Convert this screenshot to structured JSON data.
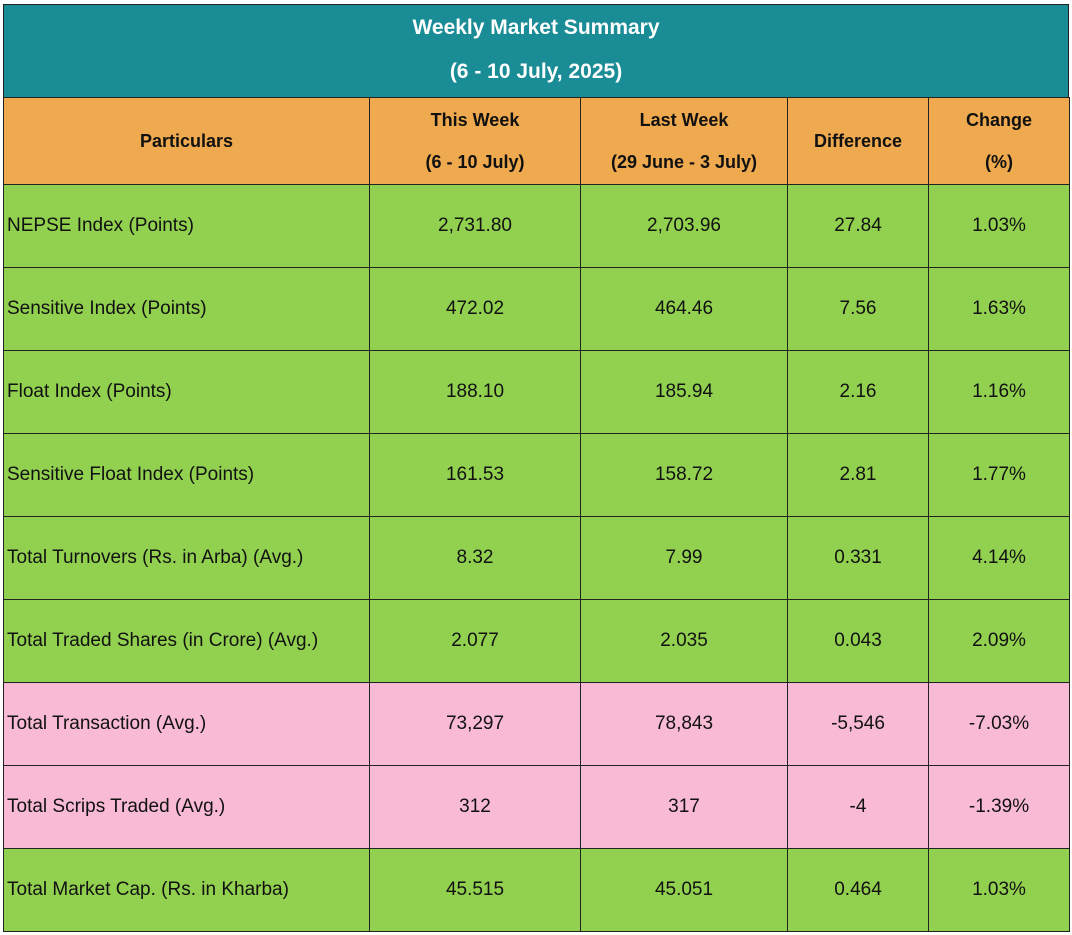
{
  "title": {
    "line1": "Weekly Market Summary",
    "line2": "(6 - 10 July, 2025)"
  },
  "headers": {
    "particulars": "Particulars",
    "this_week": "This Week",
    "this_week_range": "(6 - 10 July)",
    "last_week": "Last Week",
    "last_week_range": "(29 June - 3 July)",
    "difference": "Difference",
    "change": "Change",
    "change_unit": "(%)"
  },
  "rows": [
    {
      "particular": "NEPSE Index (Points)",
      "this_week": "2,731.80",
      "last_week": "2,703.96",
      "difference": "27.84",
      "change": "1.03%",
      "color": "#92d050"
    },
    {
      "particular": "Sensitive Index (Points)",
      "this_week": "472.02",
      "last_week": "464.46",
      "difference": "7.56",
      "change": "1.63%",
      "color": "#92d050"
    },
    {
      "particular": "Float Index (Points)",
      "this_week": "188.10",
      "last_week": "185.94",
      "difference": "2.16",
      "change": "1.16%",
      "color": "#92d050"
    },
    {
      "particular": "Sensitive Float Index (Points)",
      "this_week": "161.53",
      "last_week": "158.72",
      "difference": "2.81",
      "change": "1.77%",
      "color": "#92d050"
    },
    {
      "particular": "Total Turnovers (Rs. in Arba) (Avg.)",
      "this_week": "8.32",
      "last_week": "7.99",
      "difference": "0.331",
      "change": "4.14%",
      "color": "#92d050"
    },
    {
      "particular": "Total Traded Shares (in Crore) (Avg.)",
      "this_week": "2.077",
      "last_week": "2.035",
      "difference": "0.043",
      "change": "2.09%",
      "color": "#92d050"
    },
    {
      "particular": "Total Transaction (Avg.)",
      "this_week": "73,297",
      "last_week": "78,843",
      "difference": "-5,546",
      "change": "-7.03%",
      "color": "#f8bad5"
    },
    {
      "particular": "Total Scrips Traded (Avg.)",
      "this_week": "312",
      "last_week": "317",
      "difference": "-4",
      "change": "-1.39%",
      "color": "#f8bad5"
    },
    {
      "particular": "Total Market Cap. (Rs. in Kharba)",
      "this_week": "45.515",
      "last_week": "45.051",
      "difference": "0.464",
      "change": "1.03%",
      "color": "#92d050"
    }
  ],
  "colors": {
    "title_bg": "#1a8c96",
    "header_bg": "#efa94f",
    "positive_row": "#92d050",
    "negative_row": "#f8bad5"
  }
}
